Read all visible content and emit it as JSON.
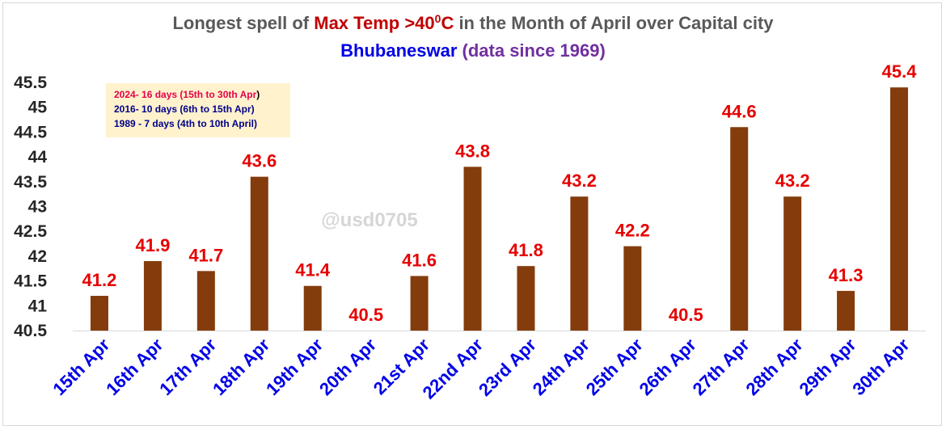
{
  "chart_data": {
    "type": "bar",
    "title_parts": [
      {
        "text": "Longest spell of ",
        "color": "#595959"
      },
      {
        "text": "Max Temp >40",
        "color": "#c00000"
      },
      {
        "text": "0",
        "color": "#c00000",
        "sup": true
      },
      {
        "text": "C",
        "color": "#c00000"
      },
      {
        "text": " in the Month of April over Capital city",
        "color": "#595959"
      }
    ],
    "subtitle_parts": [
      {
        "text": "Bhubaneswar ",
        "color": "#0000e6"
      },
      {
        "text": "(",
        "color": "#7030a0"
      },
      {
        "text": "data since 1969",
        "color": "#7030a0"
      },
      {
        "text": ")",
        "color": "#7030a0"
      }
    ],
    "categories": [
      "15th Apr",
      "16th Apr",
      "17th Apr",
      "18th Apr",
      "19th Apr",
      "20th Apr",
      "21st Apr",
      "22nd Apr",
      "23rd Apr",
      "24th Apr",
      "25th Apr",
      "26th Apr",
      "27th Apr",
      "28th Apr",
      "29th Apr",
      "30th Apr"
    ],
    "series": [
      {
        "values": [
          41.2,
          41.9,
          41.7,
          43.6,
          41.4,
          40.5,
          41.6,
          43.8,
          41.8,
          43.2,
          42.2,
          40.5,
          44.6,
          43.2,
          41.3,
          45.4
        ]
      }
    ],
    "data_labels": [
      "41.2",
      "41.9",
      "41.7",
      "43.6",
      "41.4",
      "40.5",
      "41.6",
      "43.8",
      "41.8",
      "43.2",
      "42.2",
      "40.5",
      "44.6",
      "43.2",
      "41.3",
      "45.4"
    ],
    "ylim": [
      40.5,
      45.5
    ],
    "yticks": [
      "40.5",
      "41",
      "41.5",
      "42",
      "42.5",
      "43",
      "43.5",
      "44",
      "44.5",
      "45",
      "45.5"
    ],
    "grid": false,
    "legend": "none",
    "colors": {
      "bar": "#843c0c",
      "data_label": "#e60000",
      "x_tick": "#0000e6",
      "y_tick": "#262626",
      "note_box": "#fff2cc"
    },
    "annotations": [
      {
        "segments": [
          {
            "text": "2024- 16 days (15th to 30th Apr",
            "color": "#e6004c"
          },
          {
            "text": ")",
            "color": "#000000"
          }
        ]
      },
      {
        "segments": [
          {
            "text": "2016- 10 days (6th to 15th Apr)",
            "color": "#00008b"
          }
        ]
      },
      {
        "segments": [
          {
            "text": "1989 - 7 days (4th to 10th April)",
            "color": "#00008b"
          }
        ]
      }
    ],
    "watermark": "@usd0705"
  }
}
